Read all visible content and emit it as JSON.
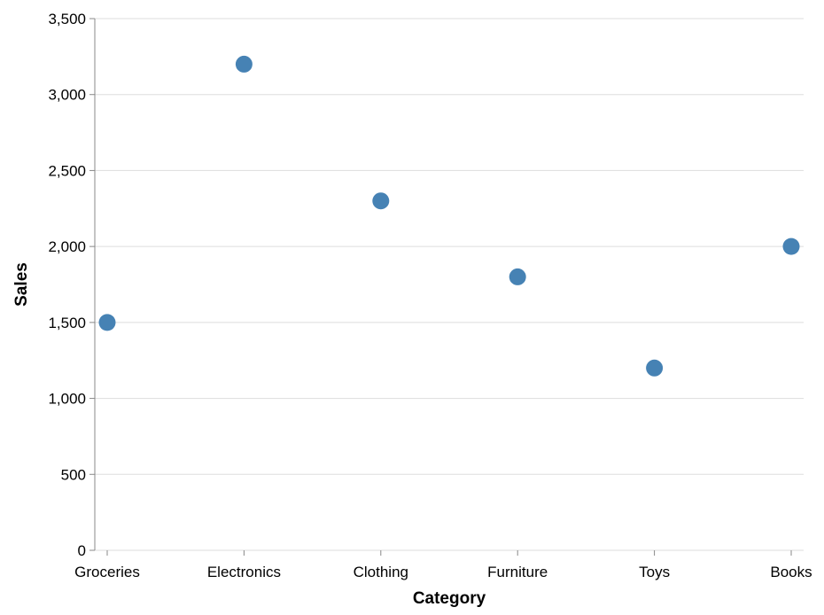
{
  "chart_data": {
    "type": "scatter",
    "categories": [
      "Groceries",
      "Electronics",
      "Clothing",
      "Furniture",
      "Toys",
      "Books"
    ],
    "values": [
      1500,
      3200,
      2300,
      1800,
      1200,
      2000
    ],
    "xlabel": "Category",
    "ylabel": "Sales",
    "ylim": [
      0,
      3500
    ],
    "yticks": [
      0,
      500,
      1000,
      1500,
      2000,
      2500,
      3000,
      3500
    ],
    "ytick_labels": [
      "0",
      "500",
      "1,000",
      "1,500",
      "2,000",
      "2,500",
      "3,000",
      "3,500"
    ],
    "grid": "horizontal",
    "point_color": "#4682b4"
  }
}
